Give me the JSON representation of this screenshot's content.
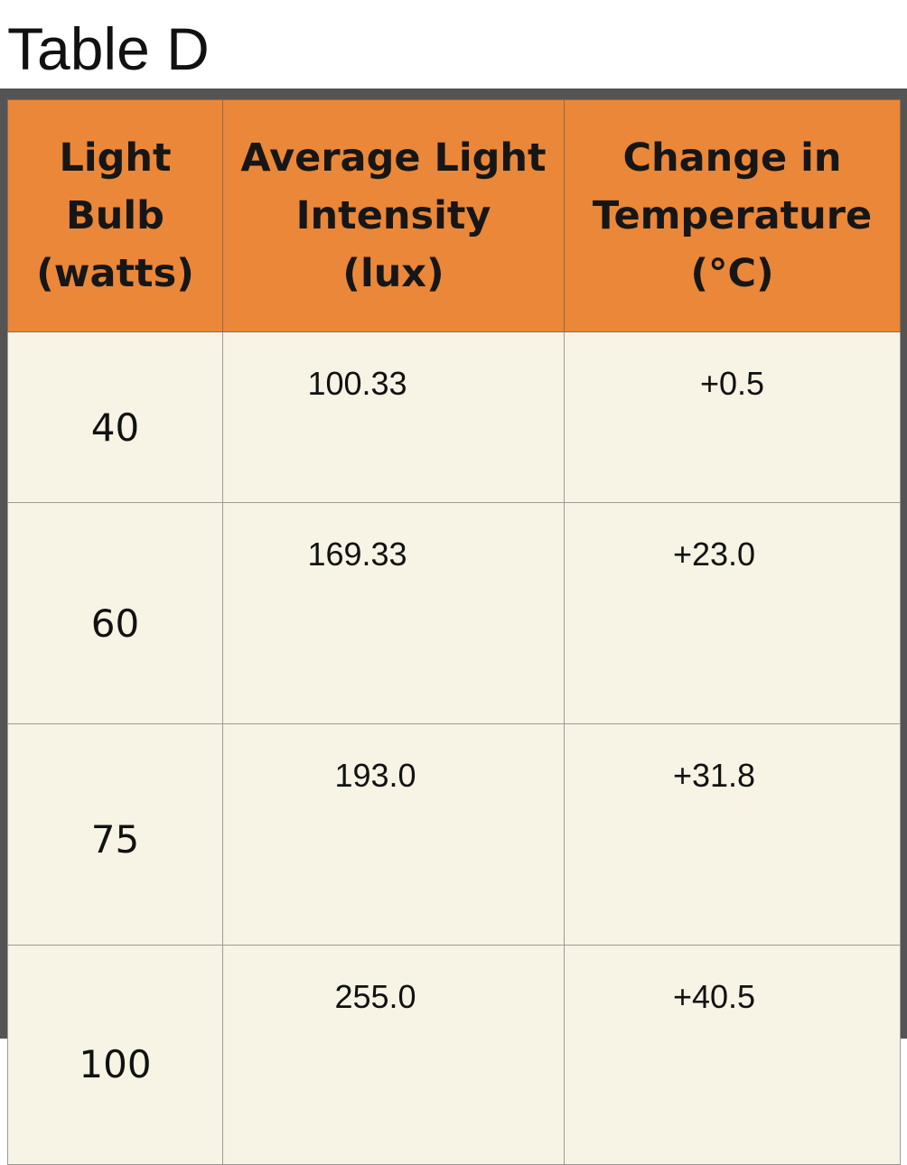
{
  "caption": "Table D",
  "table": {
    "headers": [
      "Light\nBulb\n(watts)",
      "Average Light\nIntensity\n(lux)",
      "Change in\nTemperature\n(°C)"
    ],
    "rows": [
      [
        "40",
        "100.33",
        "+0.5"
      ],
      [
        "60",
        "169.33",
        "+23.0"
      ],
      [
        "75",
        "193.0",
        "+31.8"
      ],
      [
        "100",
        "255.0",
        "+40.5"
      ]
    ]
  },
  "colors": {
    "header_background": "#ea8739",
    "cell_background": "#f7f3e5",
    "frame": "#545454"
  }
}
